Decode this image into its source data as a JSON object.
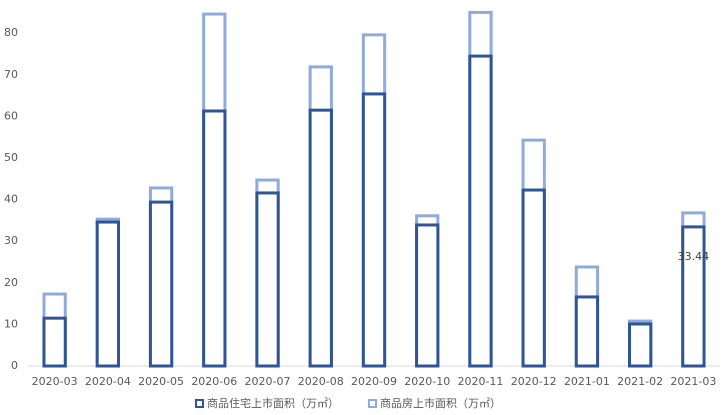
{
  "chart_data": {
    "type": "bar",
    "overlap": true,
    "categories": [
      "2020-03",
      "2020-04",
      "2020-05",
      "2020-06",
      "2020-07",
      "2020-08",
      "2020-09",
      "2020-10",
      "2020-11",
      "2020-12",
      "2021-01",
      "2021-02",
      "2021-03"
    ],
    "series": [
      {
        "name": "商品住宅上市面积（万㎡）",
        "color": "#2f5597",
        "values": [
          11.5,
          34.6,
          39.4,
          61.3,
          41.6,
          61.5,
          65.4,
          33.9,
          74.5,
          42.3,
          16.6,
          10.1,
          33.44
        ],
        "value_labels": [
          null,
          null,
          null,
          null,
          null,
          null,
          null,
          null,
          null,
          null,
          null,
          null,
          "33.44"
        ]
      },
      {
        "name": "商品房上市面积（万㎡）",
        "color": "#8faadc",
        "values": [
          17.3,
          35.3,
          42.8,
          84.6,
          44.7,
          71.9,
          79.6,
          36.1,
          85.0,
          54.3,
          23.8,
          10.8,
          36.8
        ]
      }
    ],
    "ylim": [
      0,
      85
    ],
    "yticks": [
      0,
      10,
      20,
      30,
      40,
      50,
      60,
      70,
      80
    ],
    "grid": false,
    "legend": "bottom"
  }
}
